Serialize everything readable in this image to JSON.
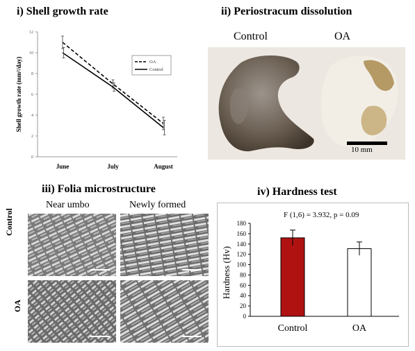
{
  "panels": {
    "growth": {
      "title": "i) Shell growth rate",
      "ylabel": "Shell growth rate (mm²/day)",
      "yticks": [
        "0",
        "2",
        "4",
        "6",
        "8",
        "10",
        "12"
      ],
      "xticks": [
        "June",
        "July",
        "August"
      ],
      "legend": [
        "OA",
        "Control"
      ]
    },
    "periostracum": {
      "title": "ii) Periostracum dissolution",
      "label_control": "Control",
      "label_oa": "OA",
      "scale_bar": "10 mm"
    },
    "folia": {
      "title": "iii) Folia microstructure",
      "col_left": "Near umbo",
      "col_right": "Newly formed",
      "row_top": "Control",
      "row_bottom": "OA"
    },
    "hardness": {
      "title": "iv) Hardness test",
      "stat": "F (1,6) = 3.932, p = 0.09",
      "ylabel": "Hardness (Hv)",
      "yticks": [
        "0",
        "20",
        "40",
        "60",
        "80",
        "100",
        "120",
        "140",
        "160",
        "180"
      ]
    }
  },
  "chart_data": [
    {
      "type": "line",
      "title": "i) Shell growth rate",
      "ylabel": "Shell growth rate (mm²/day)",
      "categories": [
        "June",
        "July",
        "August"
      ],
      "ylim": [
        0,
        12
      ],
      "series": [
        {
          "name": "OA",
          "style": "dashed",
          "values": [
            11.0,
            7.0,
            3.2
          ],
          "errors": [
            0.6,
            0.4,
            0.6
          ]
        },
        {
          "name": "Control",
          "style": "solid",
          "values": [
            10.0,
            6.7,
            2.8
          ],
          "errors": [
            0.5,
            0.4,
            0.7
          ]
        }
      ],
      "legend": "top-right"
    },
    {
      "type": "bar",
      "title": "iv) Hardness test",
      "ylabel": "Hardness (Hv)",
      "categories": [
        "Control",
        "OA"
      ],
      "values": [
        152,
        131
      ],
      "errors": [
        15,
        13
      ],
      "colors": [
        "#b01212",
        "#ffffff"
      ],
      "ylim": [
        0,
        180
      ],
      "annotation": "F (1,6) = 3.932, p = 0.09"
    }
  ]
}
